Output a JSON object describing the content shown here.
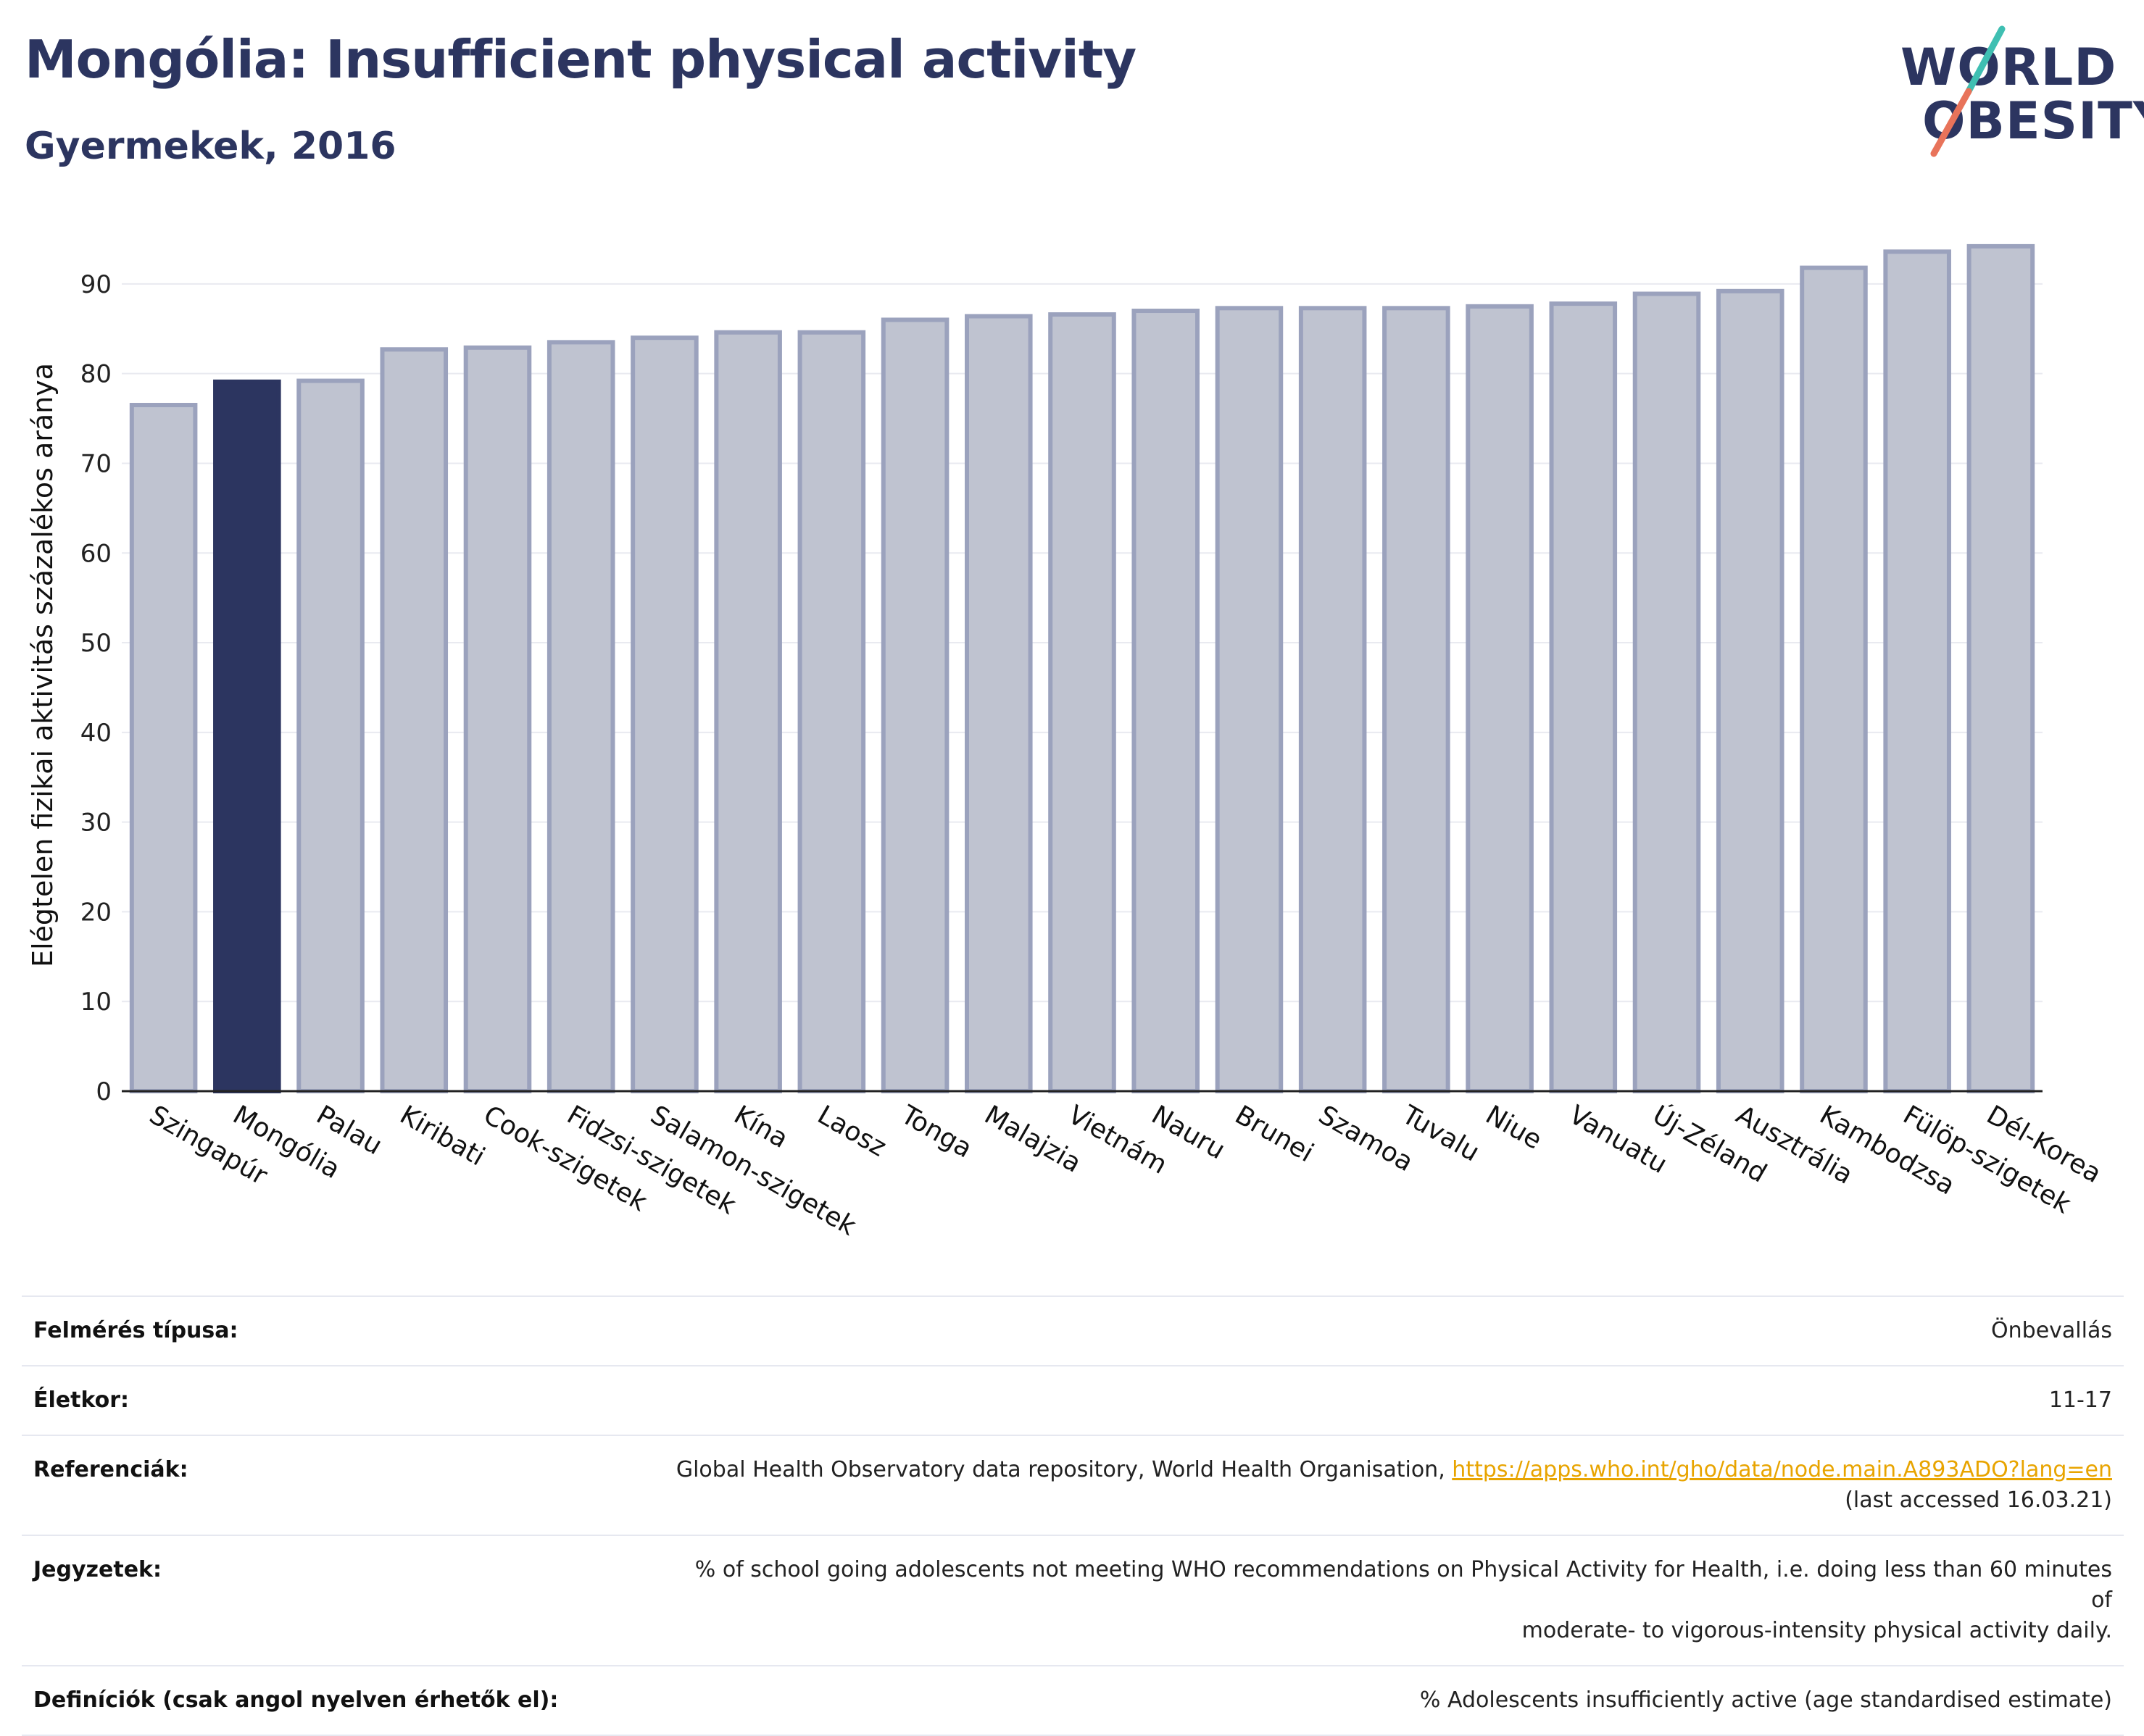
{
  "header": {
    "title": "Mongólia: Insufficient physical activity",
    "subtitle": "Gyermekek, 2016"
  },
  "logo": {
    "line1": "WORLD",
    "line2": "OBESITY",
    "accent_colors": [
      "#3fbfb2",
      "#e8735a"
    ]
  },
  "colors": {
    "highlight_bar": "#2c3560",
    "other_bar_fill": "#bfc3d0",
    "other_bar_stroke": "#9ba2bd",
    "title": "#2c3560",
    "link": "#e8a400"
  },
  "chart_data": {
    "type": "bar",
    "title": "",
    "ylabel": "Elégtelen fizikai aktivitás százalékos aránya",
    "xlabel": "",
    "ylim": [
      0,
      95
    ],
    "yticks": [
      0,
      10,
      20,
      30,
      40,
      50,
      60,
      70,
      80,
      90
    ],
    "grid": true,
    "highlight": "Mongólia",
    "categories": [
      "Szingapúr",
      "Mongólia",
      "Palau",
      "Kiribati",
      "Cook-szigetek",
      "Fidzsi-szigetek",
      "Salamon-szigetek",
      "Kína",
      "Laosz",
      "Tonga",
      "Malajzia",
      "Vietnám",
      "Nauru",
      "Brunei",
      "Szamoa",
      "Tuvalu",
      "Niue",
      "Vanuatu",
      "Új-Zéland",
      "Ausztrália",
      "Kambodzsa",
      "Fülöp-szigetek",
      "Dél-Korea"
    ],
    "values": [
      76.5,
      79.1,
      79.2,
      82.7,
      82.9,
      83.5,
      84.0,
      84.6,
      84.6,
      86.0,
      86.4,
      86.6,
      87.0,
      87.3,
      87.3,
      87.3,
      87.5,
      87.8,
      88.9,
      89.2,
      91.8,
      93.6,
      94.2
    ]
  },
  "metadata": [
    {
      "label": "Felmérés típusa:",
      "value": "Önbevallás"
    },
    {
      "label": "Életkor:",
      "value": "11-17"
    },
    {
      "label": "Referenciák:",
      "value": "Global Health Observatory data repository, World Health Organisation, ",
      "link": "https://apps.who.int/gho/data/node.main.A893ADO?lang=en",
      "value2": "(last accessed 16.03.21)"
    },
    {
      "label": "Jegyzetek:",
      "value": "% of school going adolescents not meeting WHO recommendations on Physical Activity for Health, i.e. doing less than 60 minutes of",
      "value2": "moderate- to vigorous-intensity physical activity daily."
    },
    {
      "label": "Definíciók (csak angol nyelven érhetők el):",
      "value": "% Adolescents insufficiently active (age standardised estimate)"
    }
  ]
}
